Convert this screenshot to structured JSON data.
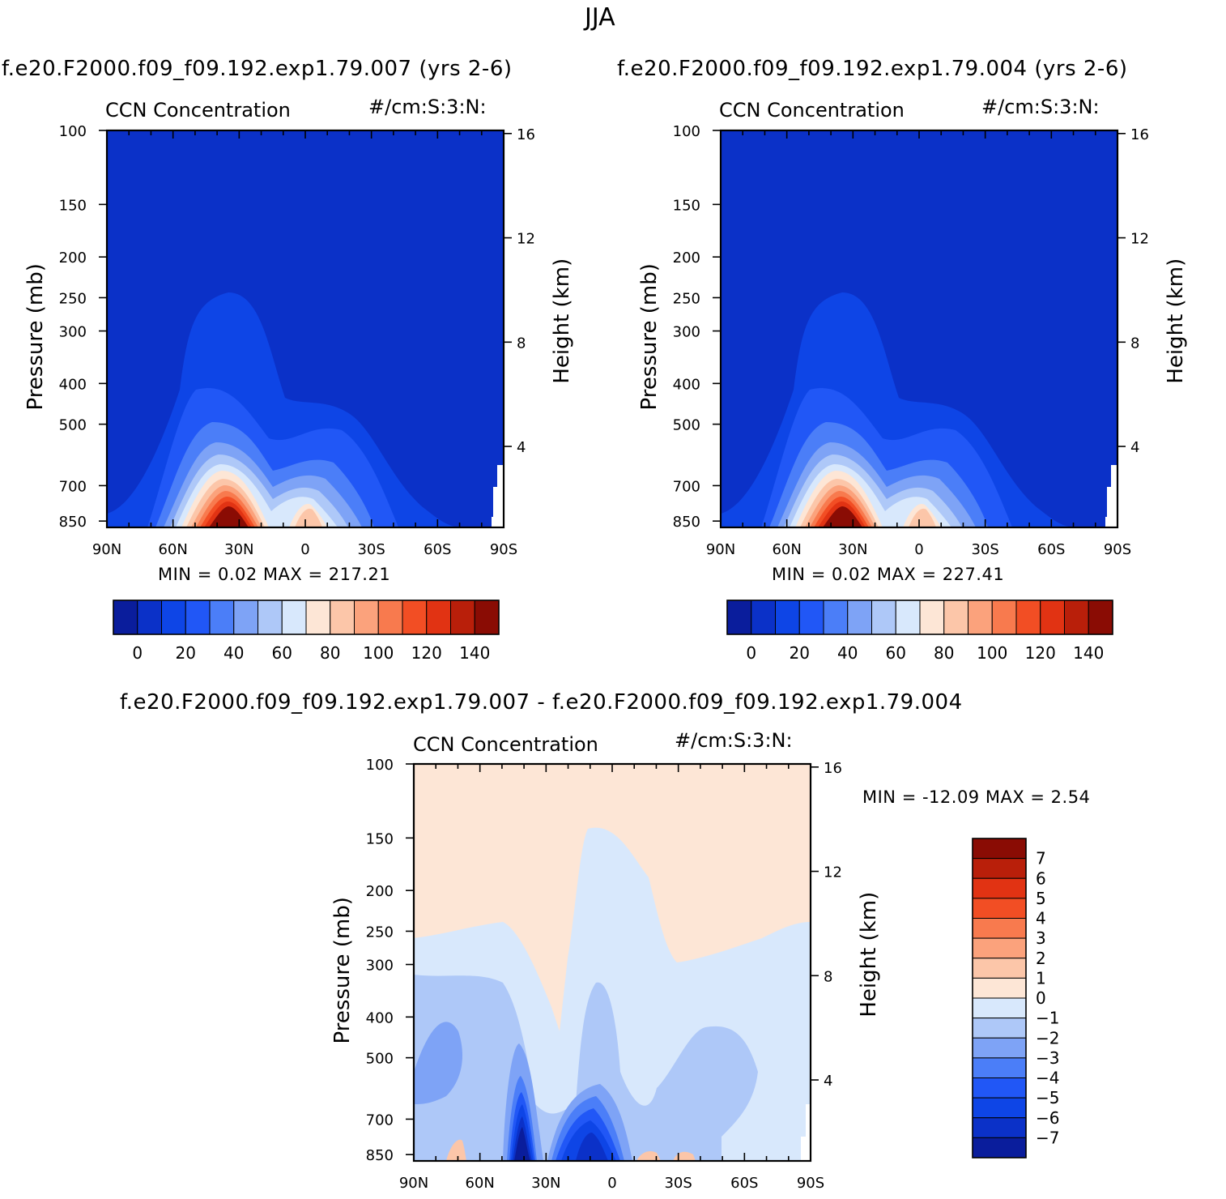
{
  "main_title": "JJA",
  "panels": [
    {
      "case_label": "f.e20.F2000.f09_f09.192.exp1.79.007 (yrs 2-6)",
      "variable": "CCN Concentration",
      "units": "#/cm:S:3:N:",
      "ylabel": "Pressure (mb)",
      "ylabel_right": "Height (km)",
      "stats": "MIN =     0.02   MAX =  217.21"
    },
    {
      "case_label": "f.e20.F2000.f09_f09.192.exp1.79.004 (yrs 2-6)",
      "variable": "CCN Concentration",
      "units": "#/cm:S:3:N:",
      "ylabel": "Pressure (mb)",
      "ylabel_right": "Height (km)",
      "stats": "MIN =     0.02   MAX =  227.41"
    },
    {
      "case_label": "f.e20.F2000.f09_f09.192.exp1.79.007 - f.e20.F2000.f09_f09.192.exp1.79.004",
      "variable": "CCN Concentration",
      "units": "#/cm:S:3:N:",
      "ylabel": "Pressure (mb)",
      "ylabel_right": "Height (km)",
      "stats": "MIN = -12.09   MAX =    2.54"
    }
  ],
  "chart_data": [
    {
      "type": "heatmap",
      "title": "CCN Concentration",
      "x": [
        "90N",
        "60N",
        "30N",
        "0",
        "30S",
        "60S",
        "90S"
      ],
      "y_pressure_ticks": [
        "100",
        "150",
        "200",
        "250",
        "300",
        "400",
        "500",
        "700",
        "850"
      ],
      "y_height_ticks": [
        "16",
        "12",
        "8",
        "4"
      ],
      "ylim": [
        100,
        900
      ],
      "zmin": 0.02,
      "zmax": 217.21,
      "colorbar_labels": [
        "0",
        "20",
        "40",
        "60",
        "80",
        "100",
        "120",
        "140"
      ]
    },
    {
      "type": "heatmap",
      "title": "CCN Concentration",
      "x": [
        "90N",
        "60N",
        "30N",
        "0",
        "30S",
        "60S",
        "90S"
      ],
      "y_pressure_ticks": [
        "100",
        "150",
        "200",
        "250",
        "300",
        "400",
        "500",
        "700",
        "850"
      ],
      "y_height_ticks": [
        "16",
        "12",
        "8",
        "4"
      ],
      "ylim": [
        100,
        900
      ],
      "zmin": 0.02,
      "zmax": 227.41,
      "colorbar_labels": [
        "0",
        "20",
        "40",
        "60",
        "80",
        "100",
        "120",
        "140"
      ]
    },
    {
      "type": "heatmap",
      "title": "CCN Concentration",
      "x": [
        "90N",
        "60N",
        "30N",
        "0",
        "30S",
        "60S",
        "90S"
      ],
      "y_pressure_ticks": [
        "100",
        "150",
        "200",
        "250",
        "300",
        "400",
        "500",
        "700",
        "850"
      ],
      "y_height_ticks": [
        "16",
        "12",
        "8",
        "4"
      ],
      "ylim": [
        100,
        900
      ],
      "zmin": -12.09,
      "zmax": 2.54,
      "colorbar_labels": [
        "7",
        "6",
        "5",
        "4",
        "3",
        "2",
        "1",
        "0",
        "-1",
        "-2",
        "-3",
        "-4",
        "-5",
        "-6",
        "-7"
      ]
    }
  ],
  "colors": {
    "abs_scale": [
      "#0a1d9c",
      "#0b31c8",
      "#0e45e6",
      "#2157f6",
      "#4b7ef8",
      "#7ea3f6",
      "#aec8f8",
      "#d8e8fc",
      "#fde6d6",
      "#fcc6a9",
      "#fba27c",
      "#f87a4e",
      "#f24e24",
      "#e13313",
      "#b91f0a",
      "#8a0c04"
    ],
    "diff_scale": [
      "#0a1d9c",
      "#0b31c8",
      "#0e45e6",
      "#2157f6",
      "#4b7ef8",
      "#7ea3f6",
      "#aec8f8",
      "#d8e8fc",
      "#fde6d6",
      "#fcc6a9",
      "#fba27c",
      "#f87a4e",
      "#f24e24",
      "#e13313",
      "#b91f0a",
      "#8a0c04"
    ]
  }
}
